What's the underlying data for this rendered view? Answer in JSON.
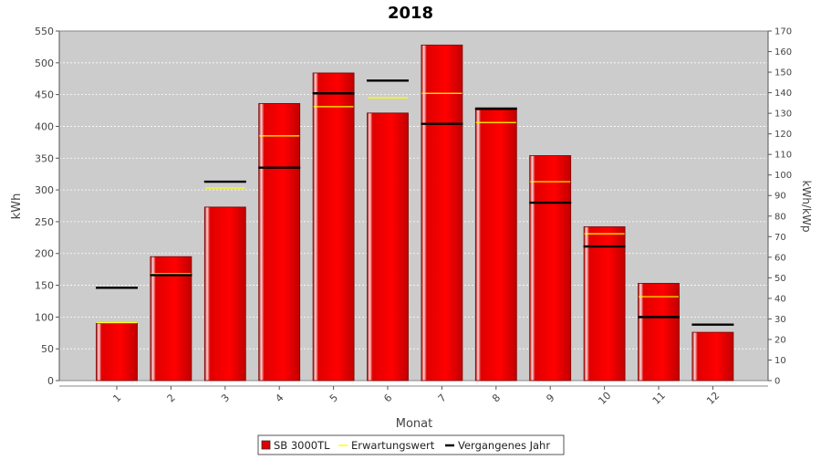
{
  "chart_data": {
    "type": "bar",
    "title": "2018",
    "xlabel": "Monat",
    "ylabel": "kWh",
    "y2label": "kWh/kWp",
    "categories": [
      "1",
      "2",
      "3",
      "4",
      "5",
      "6",
      "7",
      "8",
      "9",
      "10",
      "11",
      "12"
    ],
    "ylim": [
      0,
      550
    ],
    "y2lim": [
      0,
      170
    ],
    "yticks": [
      0,
      50,
      100,
      150,
      200,
      250,
      300,
      350,
      400,
      450,
      500,
      550
    ],
    "y2ticks": [
      0,
      10,
      20,
      30,
      40,
      50,
      60,
      70,
      80,
      90,
      100,
      110,
      120,
      130,
      140,
      150,
      160,
      170
    ],
    "grid": true,
    "legend_position": "bottom",
    "series": [
      {
        "name": "SB 3000TL",
        "kind": "bar",
        "color": "#e00000",
        "values": [
          90,
          195,
          273,
          436,
          484,
          421,
          528,
          426,
          354,
          242,
          153,
          76
        ]
      },
      {
        "name": "Erwartungswert",
        "kind": "marker",
        "color": "#ffff00",
        "values": [
          91,
          168,
          303,
          385,
          431,
          445,
          452,
          406,
          313,
          231,
          132,
          87
        ]
      },
      {
        "name": "Vergangenes Jahr",
        "kind": "marker",
        "color": "#000000",
        "values": [
          146,
          166,
          313,
          335,
          452,
          472,
          404,
          428,
          280,
          211,
          100,
          88
        ]
      }
    ],
    "colors": {
      "plot_background": "#cccccc",
      "grid": "#ffffff"
    }
  }
}
